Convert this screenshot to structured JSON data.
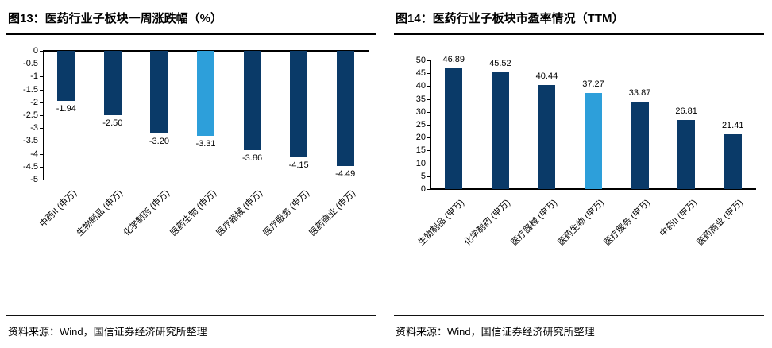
{
  "panels": [
    {
      "title": "图13：医药行业子板块一周涨跌幅（%）",
      "source": "资料来源：Wind，国信证券经济研究所整理"
    },
    {
      "title": "图14：医药行业子板块市盈率情况（TTM）",
      "source": "资料来源：Wind，国信证券经济研究所整理"
    }
  ],
  "colors": {
    "bar": "#0a3a68",
    "highlight": "#2d9fda",
    "axis": "#000000"
  },
  "chart_data": [
    {
      "type": "bar",
      "title": "图13：医药行业子板块一周涨跌幅（%）",
      "categories": [
        "中药II (申万)",
        "生物制品 (申万)",
        "化学制药 (申万)",
        "医药生物 (申万)",
        "医疗器械 (申万)",
        "医疗服务 (申万)",
        "医药商业 (申万)"
      ],
      "values": [
        -1.94,
        -2.5,
        -3.2,
        -3.31,
        -3.86,
        -4.15,
        -4.49
      ],
      "value_labels": [
        "-1.94",
        "-2.50",
        "-3.20",
        "-3.31",
        "-3.86",
        "-4.15",
        "-4.49"
      ],
      "highlight_index": 3,
      "ylim": [
        -5,
        0
      ],
      "ytick_step": 0.5,
      "direction": "down",
      "grid": false,
      "legend": false,
      "xlabel": "",
      "ylabel": ""
    },
    {
      "type": "bar",
      "title": "图14：医药行业子板块市盈率情况（TTM）",
      "categories": [
        "生物制品 (申万)",
        "化学制药 (申万)",
        "医疗器械 (申万)",
        "医药生物 (申万)",
        "医疗服务 (申万)",
        "中药II (申万)",
        "医药商业 (申万)"
      ],
      "values": [
        46.89,
        45.52,
        40.44,
        37.27,
        33.87,
        26.81,
        21.41
      ],
      "value_labels": [
        "46.89",
        "45.52",
        "40.44",
        "37.27",
        "33.87",
        "26.81",
        "21.41"
      ],
      "highlight_index": 3,
      "ylim": [
        0,
        50
      ],
      "ytick_step": 5,
      "direction": "up",
      "grid": false,
      "legend": false,
      "xlabel": "",
      "ylabel": ""
    }
  ]
}
